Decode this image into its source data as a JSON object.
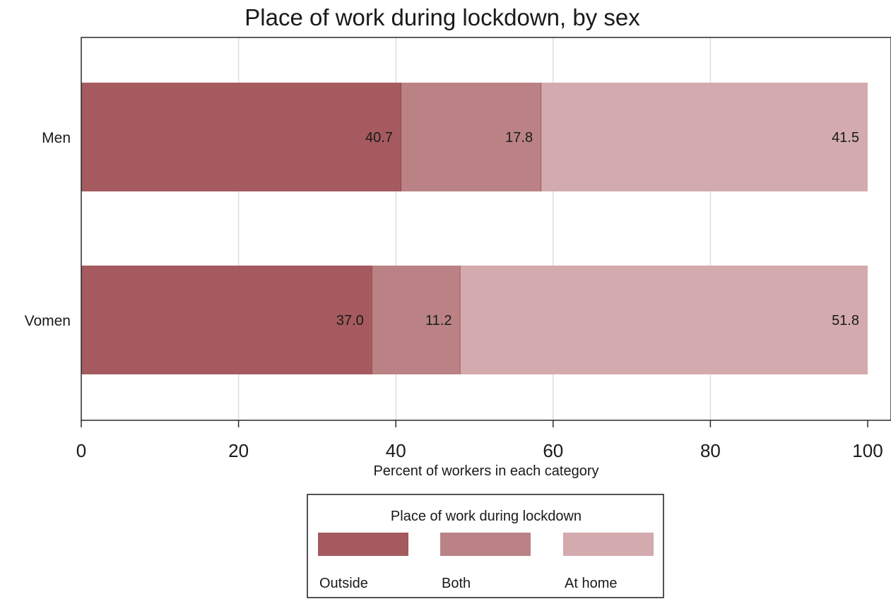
{
  "chart_data": {
    "type": "bar",
    "orientation": "horizontal",
    "stacked": true,
    "title": "Place of work during lockdown, by sex",
    "xlabel": "Percent of workers in each category",
    "ylabel": "",
    "xlim": [
      0,
      100
    ],
    "xticks": [
      "0",
      "20",
      "40",
      "60",
      "80",
      "100"
    ],
    "categories": [
      "Men",
      "Women"
    ],
    "category_labels": [
      "Men",
      "Vomen"
    ],
    "series": [
      {
        "name": "Outside",
        "color": "#a45a5e",
        "values": [
          40.7,
          37.0
        ],
        "labels": [
          "40.7",
          "37.0"
        ]
      },
      {
        "name": "Both",
        "color": "#ba8284",
        "values": [
          17.8,
          11.2
        ],
        "labels": [
          "17.8",
          "11.2"
        ]
      },
      {
        "name": "At home",
        "color": "#d3aaad",
        "values": [
          41.5,
          51.8
        ],
        "labels": [
          "41.5",
          "51.8"
        ]
      }
    ],
    "grid": true,
    "legend": {
      "title": "Place of work during lockdown",
      "position": "bottom"
    }
  }
}
